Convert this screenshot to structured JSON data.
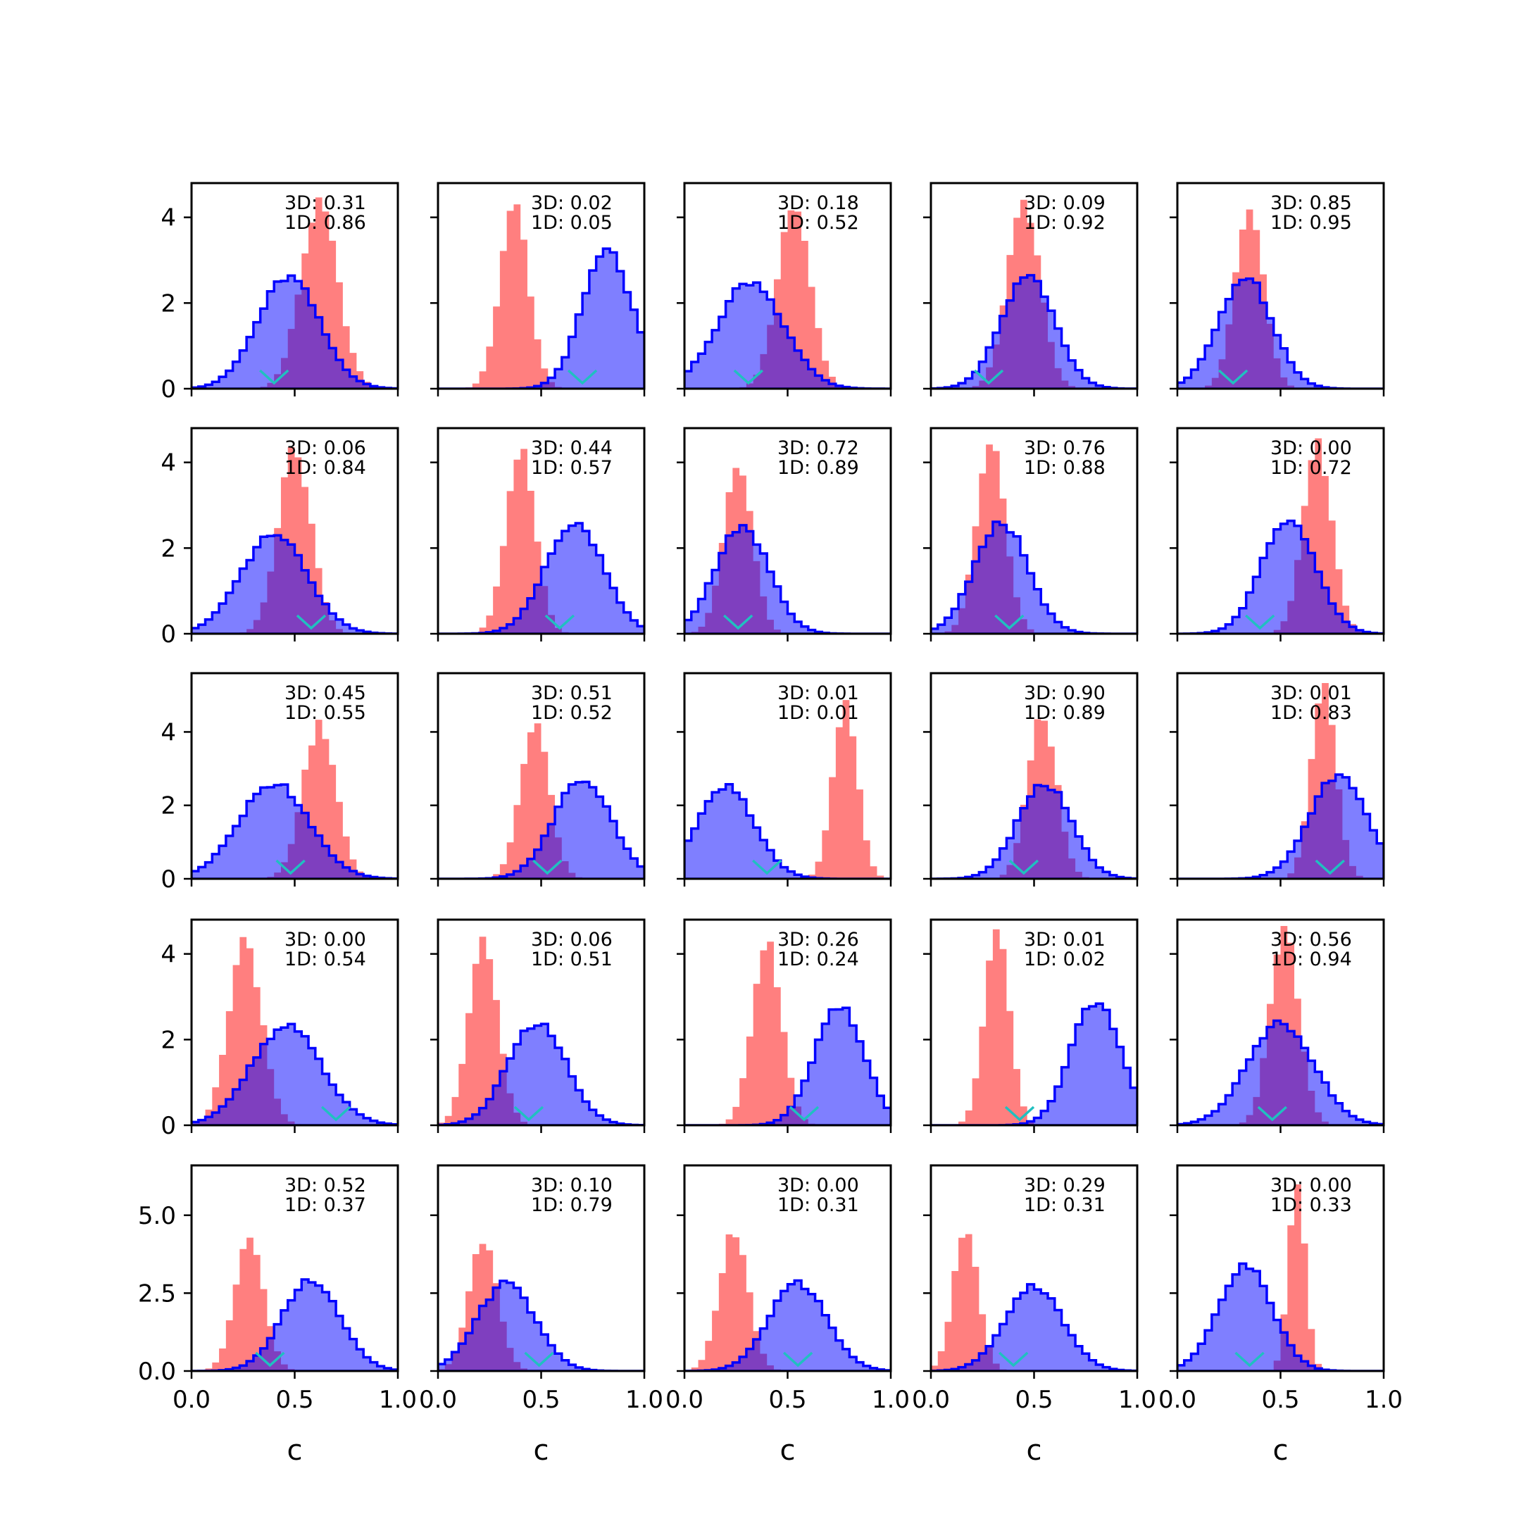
{
  "colors": {
    "hist_3d": "#0000ff",
    "hist_1d": "#ff0000",
    "truth_marker": "#20c0c0",
    "overlap": "#8b008b"
  },
  "chart_data": {
    "type": "histogram",
    "layout": "5x5 grid",
    "xlabel": "c",
    "xlim": [
      0,
      1
    ],
    "xticks": [
      "0.0",
      "0.5",
      "1.0"
    ],
    "series_style": [
      {
        "key": "3D",
        "fill": "#0000ff",
        "fill_alpha": 0.5,
        "outline": true
      },
      {
        "key": "1D",
        "fill": "#ff0000",
        "fill_alpha": 0.5,
        "outline": false
      }
    ],
    "row_axes": [
      {
        "ylim": [
          0,
          4.8
        ],
        "yticks": [
          0,
          2,
          4
        ],
        "ytick_labels": [
          "0",
          "2",
          "4"
        ]
      },
      {
        "ylim": [
          0,
          4.8
        ],
        "yticks": [
          0,
          2,
          4
        ],
        "ytick_labels": [
          "0",
          "2",
          "4"
        ]
      },
      {
        "ylim": [
          0,
          5.6
        ],
        "yticks": [
          0,
          2,
          4
        ],
        "ytick_labels": [
          "0",
          "2",
          "4"
        ]
      },
      {
        "ylim": [
          0,
          4.8
        ],
        "yticks": [
          0,
          2,
          4
        ],
        "ytick_labels": [
          "0",
          "2",
          "4"
        ]
      },
      {
        "ylim": [
          0,
          6.6
        ],
        "yticks": [
          0,
          2.5,
          5
        ],
        "ytick_labels": [
          "0.0",
          "2.5",
          "5.0"
        ]
      }
    ],
    "panels": [
      {
        "label_3d": "3D: 0.31",
        "label_1d": "1D: 0.86",
        "truth": 0.4,
        "d3": {
          "mu": 0.47,
          "sd": 0.15,
          "peak": 2.6
        },
        "d1": {
          "mu": 0.62,
          "sd": 0.09,
          "peak": 4.3
        }
      },
      {
        "label_3d": "3D: 0.02",
        "label_1d": "1D: 0.05",
        "truth": 0.7,
        "d3": {
          "mu": 0.82,
          "sd": 0.12,
          "peak": 3.2
        },
        "d1": {
          "mu": 0.37,
          "sd": 0.07,
          "peak": 4.3
        }
      },
      {
        "label_3d": "3D: 0.18",
        "label_1d": "1D: 0.52",
        "truth": 0.31,
        "d3": {
          "mu": 0.32,
          "sd": 0.16,
          "peak": 2.5
        },
        "d1": {
          "mu": 0.53,
          "sd": 0.08,
          "peak": 4.2
        }
      },
      {
        "label_3d": "3D: 0.09",
        "label_1d": "1D: 0.92",
        "truth": 0.28,
        "d3": {
          "mu": 0.47,
          "sd": 0.13,
          "peak": 2.6
        },
        "d1": {
          "mu": 0.45,
          "sd": 0.08,
          "peak": 4.3
        }
      },
      {
        "label_3d": "3D: 0.85",
        "label_1d": "1D: 0.95",
        "truth": 0.27,
        "d3": {
          "mu": 0.33,
          "sd": 0.13,
          "peak": 2.6
        },
        "d1": {
          "mu": 0.35,
          "sd": 0.07,
          "peak": 4.3
        }
      },
      {
        "label_3d": "3D: 0.06",
        "label_1d": "1D: 0.84",
        "truth": 0.58,
        "d3": {
          "mu": 0.4,
          "sd": 0.16,
          "peak": 2.3
        },
        "d1": {
          "mu": 0.5,
          "sd": 0.08,
          "peak": 4.3
        }
      },
      {
        "label_3d": "3D: 0.44",
        "label_1d": "1D: 0.57",
        "truth": 0.59,
        "d3": {
          "mu": 0.66,
          "sd": 0.14,
          "peak": 2.6
        },
        "d1": {
          "mu": 0.4,
          "sd": 0.07,
          "peak": 4.3
        }
      },
      {
        "label_3d": "3D: 0.72",
        "label_1d": "1D: 0.89",
        "truth": 0.26,
        "d3": {
          "mu": 0.28,
          "sd": 0.13,
          "peak": 2.5
        },
        "d1": {
          "mu": 0.26,
          "sd": 0.07,
          "peak": 4.0
        }
      },
      {
        "label_3d": "3D: 0.76",
        "label_1d": "1D: 0.88",
        "truth": 0.38,
        "d3": {
          "mu": 0.34,
          "sd": 0.13,
          "peak": 2.6
        },
        "d1": {
          "mu": 0.29,
          "sd": 0.07,
          "peak": 4.5
        }
      },
      {
        "label_3d": "3D: 0.00",
        "label_1d": "1D: 0.72",
        "truth": 0.4,
        "d3": {
          "mu": 0.54,
          "sd": 0.13,
          "peak": 2.7
        },
        "d1": {
          "mu": 0.68,
          "sd": 0.07,
          "peak": 4.4
        }
      },
      {
        "label_3d": "3D: 0.45",
        "label_1d": "1D: 0.55",
        "truth": 0.48,
        "d3": {
          "mu": 0.4,
          "sd": 0.17,
          "peak": 2.6
        },
        "d1": {
          "mu": 0.62,
          "sd": 0.08,
          "peak": 4.2
        }
      },
      {
        "label_3d": "3D: 0.51",
        "label_1d": "1D: 0.52",
        "truth": 0.53,
        "d3": {
          "mu": 0.7,
          "sd": 0.14,
          "peak": 2.7
        },
        "d1": {
          "mu": 0.47,
          "sd": 0.07,
          "peak": 4.3
        }
      },
      {
        "label_3d": "3D: 0.01",
        "label_1d": "1D: 0.01",
        "truth": 0.4,
        "d3": {
          "mu": 0.2,
          "sd": 0.14,
          "peak": 2.5
        },
        "d1": {
          "mu": 0.78,
          "sd": 0.06,
          "peak": 4.7
        }
      },
      {
        "label_3d": "3D: 0.90",
        "label_1d": "1D: 0.89",
        "truth": 0.45,
        "d3": {
          "mu": 0.55,
          "sd": 0.13,
          "peak": 2.6
        },
        "d1": {
          "mu": 0.54,
          "sd": 0.07,
          "peak": 4.5
        }
      },
      {
        "label_3d": "3D: 0.01",
        "label_1d": "1D: 0.83",
        "truth": 0.74,
        "d3": {
          "mu": 0.78,
          "sd": 0.14,
          "peak": 2.8
        },
        "d1": {
          "mu": 0.71,
          "sd": 0.06,
          "peak": 5.2
        }
      },
      {
        "label_3d": "3D: 0.00",
        "label_1d": "1D: 0.54",
        "truth": 0.7,
        "d3": {
          "mu": 0.46,
          "sd": 0.17,
          "peak": 2.3
        },
        "d1": {
          "mu": 0.26,
          "sd": 0.08,
          "peak": 4.3
        }
      },
      {
        "label_3d": "3D: 0.06",
        "label_1d": "1D: 0.51",
        "truth": 0.44,
        "d3": {
          "mu": 0.48,
          "sd": 0.14,
          "peak": 2.4
        },
        "d1": {
          "mu": 0.22,
          "sd": 0.07,
          "peak": 4.3
        }
      },
      {
        "label_3d": "3D: 0.26",
        "label_1d": "1D: 0.24",
        "truth": 0.58,
        "d3": {
          "mu": 0.75,
          "sd": 0.12,
          "peak": 2.8
        },
        "d1": {
          "mu": 0.4,
          "sd": 0.07,
          "peak": 4.3
        }
      },
      {
        "label_3d": "3D: 0.01",
        "label_1d": "1D: 0.02",
        "truth": 0.43,
        "d3": {
          "mu": 0.8,
          "sd": 0.12,
          "peak": 2.9
        },
        "d1": {
          "mu": 0.32,
          "sd": 0.06,
          "peak": 4.7
        }
      },
      {
        "label_3d": "3D: 0.56",
        "label_1d": "1D: 0.94",
        "truth": 0.46,
        "d3": {
          "mu": 0.5,
          "sd": 0.16,
          "peak": 2.4
        },
        "d1": {
          "mu": 0.52,
          "sd": 0.07,
          "peak": 4.5
        }
      },
      {
        "label_3d": "3D: 0.52",
        "label_1d": "1D: 0.37",
        "truth": 0.38,
        "d3": {
          "mu": 0.58,
          "sd": 0.14,
          "peak": 2.9
        },
        "d1": {
          "mu": 0.28,
          "sd": 0.07,
          "peak": 4.2
        }
      },
      {
        "label_3d": "3D: 0.10",
        "label_1d": "1D: 0.79",
        "truth": 0.49,
        "d3": {
          "mu": 0.33,
          "sd": 0.14,
          "peak": 2.8
        },
        "d1": {
          "mu": 0.22,
          "sd": 0.07,
          "peak": 4.2
        }
      },
      {
        "label_3d": "3D: 0.00",
        "label_1d": "1D: 0.31",
        "truth": 0.55,
        "d3": {
          "mu": 0.55,
          "sd": 0.14,
          "peak": 2.8
        },
        "d1": {
          "mu": 0.24,
          "sd": 0.07,
          "peak": 4.5
        }
      },
      {
        "label_3d": "3D: 0.29",
        "label_1d": "1D: 0.31",
        "truth": 0.4,
        "d3": {
          "mu": 0.5,
          "sd": 0.14,
          "peak": 2.7
        },
        "d1": {
          "mu": 0.17,
          "sd": 0.06,
          "peak": 4.6
        }
      },
      {
        "label_3d": "3D: 0.00",
        "label_1d": "1D: 0.33",
        "truth": 0.35,
        "d3": {
          "mu": 0.33,
          "sd": 0.13,
          "peak": 3.4
        },
        "d1": {
          "mu": 0.58,
          "sd": 0.04,
          "peak": 6.2
        }
      }
    ]
  }
}
